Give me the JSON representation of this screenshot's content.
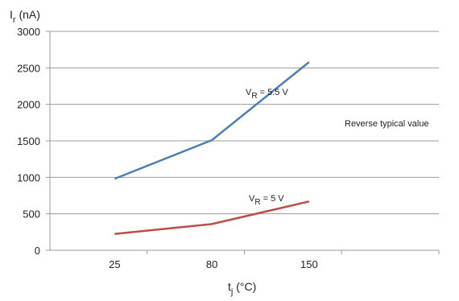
{
  "chart_data": {
    "type": "line",
    "x": [
      "25",
      "80",
      "150"
    ],
    "ylim": [
      0,
      3000
    ],
    "yticks": [
      0,
      500,
      1000,
      1500,
      2000,
      2500,
      3000
    ],
    "grid": "horizontal",
    "ylabel": {
      "main": "I",
      "sub": "r",
      "unit": " (nA)"
    },
    "xlabel": {
      "main": "t",
      "sub": "j",
      "unit": " (°C)"
    },
    "series": [
      {
        "name": "V_R = 5.5 V",
        "label_main": "V",
        "label_sub": "R",
        "label_rest": " = 5.5 V",
        "color": "#4a7ebb",
        "values": [
          980,
          1510,
          2580
        ]
      },
      {
        "name": "V_R = 5 V",
        "label_main": "V",
        "label_sub": "R",
        "label_rest": " = 5 V",
        "color": "#be4b48",
        "values": [
          225,
          360,
          670
        ]
      }
    ],
    "annotation": "Reverse typical value"
  }
}
